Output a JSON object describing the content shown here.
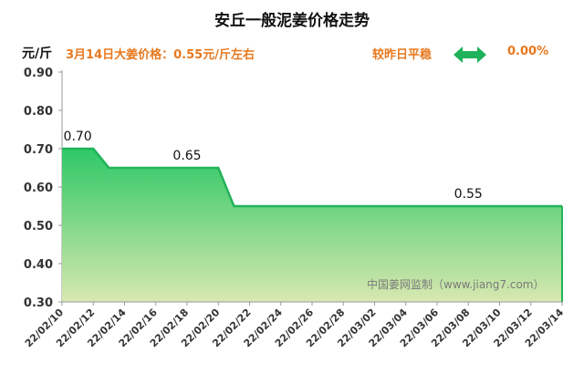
{
  "header": {
    "title": "安丘一般泥姜价格走势",
    "unit": "元/斤",
    "price_note": "3月14日大姜价格：0.55元/斤左右",
    "compare_label": "较昨日平稳",
    "compare_value": "0.00%"
  },
  "watermark": "中国姜网监制（www.jiang7.com）",
  "colors": {
    "accent": "#e8781e",
    "line": "#22b35a",
    "fill_top": "#2ec866",
    "fill_bottom": "#d8e8b0",
    "arrow": "#1fb25a"
  },
  "chart_data": {
    "type": "area",
    "title": "安丘一般泥姜价格走势",
    "ylabel": "元/斤",
    "ylim": [
      0.3,
      0.9
    ],
    "yticks": [
      "0.30",
      "0.40",
      "0.50",
      "0.60",
      "0.70",
      "0.80",
      "0.90"
    ],
    "xticks": [
      "22/02/10",
      "22/02/12",
      "22/02/14",
      "22/02/16",
      "22/02/18",
      "22/02/20",
      "22/02/22",
      "22/02/24",
      "22/02/26",
      "22/02/28",
      "22/03/02",
      "22/03/04",
      "22/03/06",
      "22/03/08",
      "22/03/10",
      "22/03/12",
      "22/03/14"
    ],
    "x": [
      "22/02/10",
      "22/02/11",
      "22/02/12",
      "22/02/13",
      "22/02/14",
      "22/02/15",
      "22/02/16",
      "22/02/17",
      "22/02/18",
      "22/02/19",
      "22/02/20",
      "22/02/21",
      "22/02/22",
      "22/02/23",
      "22/02/24",
      "22/02/25",
      "22/02/26",
      "22/02/27",
      "22/02/28",
      "22/03/01",
      "22/03/02",
      "22/03/03",
      "22/03/04",
      "22/03/05",
      "22/03/06",
      "22/03/07",
      "22/03/08",
      "22/03/09",
      "22/03/10",
      "22/03/11",
      "22/03/12",
      "22/03/13",
      "22/03/14"
    ],
    "values": [
      0.7,
      0.7,
      0.7,
      0.65,
      0.65,
      0.65,
      0.65,
      0.65,
      0.65,
      0.65,
      0.65,
      0.55,
      0.55,
      0.55,
      0.55,
      0.55,
      0.55,
      0.55,
      0.55,
      0.55,
      0.55,
      0.55,
      0.55,
      0.55,
      0.55,
      0.55,
      0.55,
      0.55,
      0.55,
      0.55,
      0.55,
      0.55,
      0.55
    ],
    "data_labels": [
      {
        "x": "22/02/11",
        "text": "0.70"
      },
      {
        "x": "22/02/18",
        "text": "0.65"
      },
      {
        "x": "22/03/08",
        "text": "0.55"
      }
    ],
    "grid": false
  }
}
